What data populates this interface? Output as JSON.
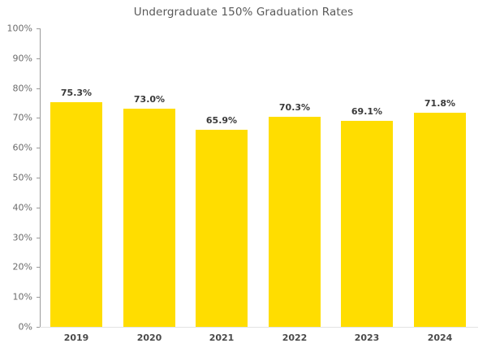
{
  "chart_data": {
    "type": "bar",
    "title": "Undergraduate 150% Graduation Rates",
    "categories": [
      "2019",
      "2020",
      "2021",
      "2022",
      "2023",
      "2024"
    ],
    "values": [
      75.3,
      73.0,
      65.9,
      70.3,
      69.1,
      71.8
    ],
    "value_labels": [
      "75.3%",
      "73.0%",
      "65.9%",
      "70.3%",
      "69.1%",
      "71.8%"
    ],
    "xlabel": "",
    "ylabel": "",
    "ylim": [
      0,
      100
    ],
    "yticks": [
      "0%",
      "10%",
      "20%",
      "30%",
      "40%",
      "50%",
      "60%",
      "70%",
      "80%",
      "90%",
      "100%"
    ],
    "grid": false,
    "legend": null,
    "bar_color": "#FFDD00"
  }
}
